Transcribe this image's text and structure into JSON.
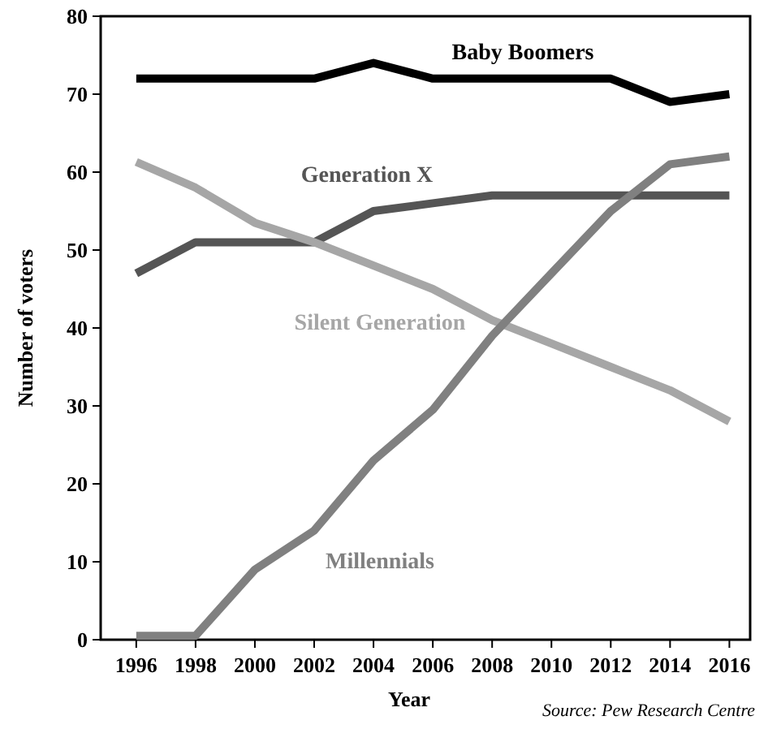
{
  "chart_data": {
    "type": "line",
    "xlabel": "Year",
    "ylabel": "Number of voters",
    "x": [
      1996,
      1998,
      2000,
      2002,
      2004,
      2006,
      2008,
      2010,
      2012,
      2014,
      2016
    ],
    "xlim": [
      1994.8,
      2016.7
    ],
    "ylim": [
      0,
      80
    ],
    "xticks": [
      1996,
      1998,
      2000,
      2002,
      2004,
      2006,
      2008,
      2010,
      2012,
      2014,
      2016
    ],
    "yticks": [
      0,
      10,
      20,
      30,
      40,
      50,
      60,
      70,
      80
    ],
    "grid": false,
    "marker": "none",
    "line_style": "solid",
    "series": [
      {
        "name": "Baby Boomers",
        "color": "#000000",
        "values": [
          72,
          72,
          72,
          72,
          74,
          72,
          72,
          72,
          72,
          69,
          70
        ]
      },
      {
        "name": "Generation X",
        "color": "#555555",
        "values": [
          47,
          51,
          51,
          51,
          55,
          56,
          57,
          57,
          57,
          57,
          57
        ]
      },
      {
        "name": "Silent Generation",
        "color": "#a6a6a6",
        "values": [
          61.3,
          58,
          53.5,
          51,
          48,
          45,
          41,
          38,
          35,
          32,
          28
        ]
      },
      {
        "name": "Millennials",
        "color": "#808080",
        "values": [
          0.5,
          0.5,
          9,
          14,
          23,
          29.5,
          39,
          47,
          55,
          61,
          62
        ]
      }
    ],
    "annotations": [
      "Source: Pew Research Centre"
    ]
  }
}
